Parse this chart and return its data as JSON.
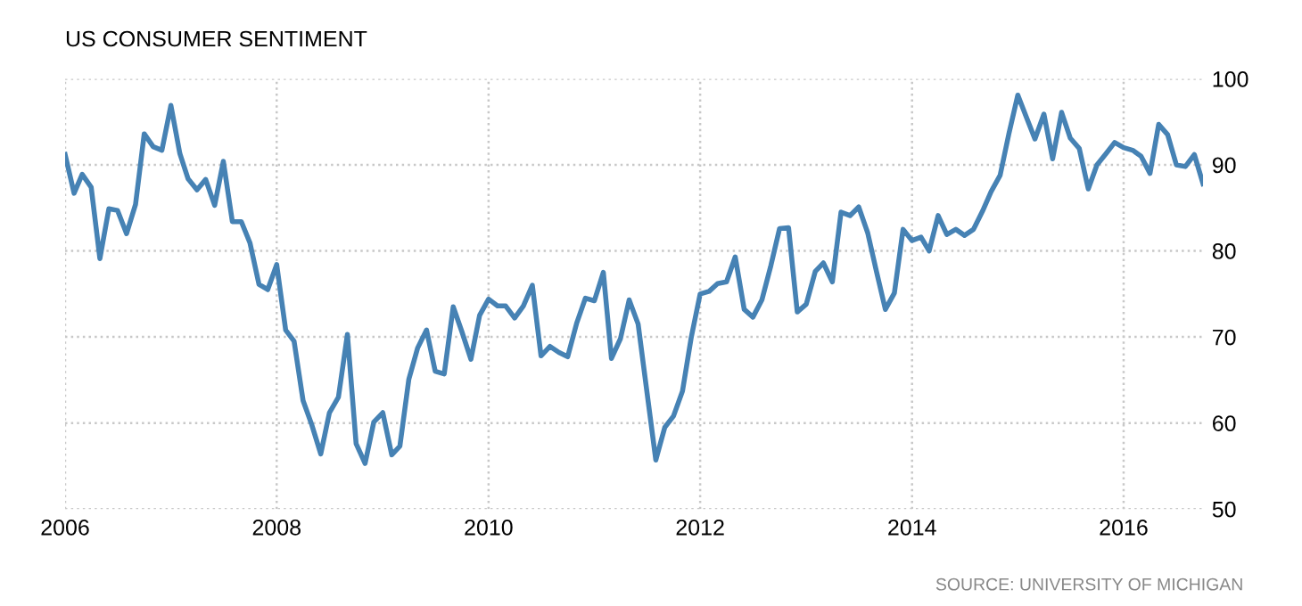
{
  "chart_data": {
    "type": "line",
    "title": "US CONSUMER SENTIMENT",
    "annotations": [
      "SOURCE: UNIVERSITY OF MICHIGAN"
    ],
    "x": [
      "2006-01",
      "2006-02",
      "2006-03",
      "2006-04",
      "2006-05",
      "2006-06",
      "2006-07",
      "2006-08",
      "2006-09",
      "2006-10",
      "2006-11",
      "2006-12",
      "2007-01",
      "2007-02",
      "2007-03",
      "2007-04",
      "2007-05",
      "2007-06",
      "2007-07",
      "2007-08",
      "2007-09",
      "2007-10",
      "2007-11",
      "2007-12",
      "2008-01",
      "2008-02",
      "2008-03",
      "2008-04",
      "2008-05",
      "2008-06",
      "2008-07",
      "2008-08",
      "2008-09",
      "2008-10",
      "2008-11",
      "2008-12",
      "2009-01",
      "2009-02",
      "2009-03",
      "2009-04",
      "2009-05",
      "2009-06",
      "2009-07",
      "2009-08",
      "2009-09",
      "2009-10",
      "2009-11",
      "2009-12",
      "2010-01",
      "2010-02",
      "2010-03",
      "2010-04",
      "2010-05",
      "2010-06",
      "2010-07",
      "2010-08",
      "2010-09",
      "2010-10",
      "2010-11",
      "2010-12",
      "2011-01",
      "2011-02",
      "2011-03",
      "2011-04",
      "2011-05",
      "2011-06",
      "2011-07",
      "2011-08",
      "2011-09",
      "2011-10",
      "2011-11",
      "2011-12",
      "2012-01",
      "2012-02",
      "2012-03",
      "2012-04",
      "2012-05",
      "2012-06",
      "2012-07",
      "2012-08",
      "2012-09",
      "2012-10",
      "2012-11",
      "2012-12",
      "2013-01",
      "2013-02",
      "2013-03",
      "2013-04",
      "2013-05",
      "2013-06",
      "2013-07",
      "2013-08",
      "2013-09",
      "2013-10",
      "2013-11",
      "2013-12",
      "2014-01",
      "2014-02",
      "2014-03",
      "2014-04",
      "2014-05",
      "2014-06",
      "2014-07",
      "2014-08",
      "2014-09",
      "2014-10",
      "2014-11",
      "2014-12",
      "2015-01",
      "2015-02",
      "2015-03",
      "2015-04",
      "2015-05",
      "2015-06",
      "2015-07",
      "2015-08",
      "2015-09",
      "2015-10",
      "2015-11",
      "2015-12",
      "2016-01",
      "2016-02",
      "2016-03",
      "2016-04",
      "2016-05",
      "2016-06",
      "2016-07",
      "2016-08",
      "2016-09",
      "2016-10"
    ],
    "series": [
      {
        "color": "#4682b4",
        "values": [
          91.2,
          86.7,
          88.9,
          87.4,
          79.1,
          84.9,
          84.7,
          82.0,
          85.4,
          93.6,
          92.1,
          91.7,
          96.9,
          91.3,
          88.4,
          87.1,
          88.3,
          85.3,
          90.4,
          83.4,
          83.4,
          80.9,
          76.1,
          75.5,
          78.4,
          70.8,
          69.5,
          62.6,
          59.8,
          56.4,
          61.2,
          63.0,
          70.3,
          57.6,
          55.3,
          60.1,
          61.2,
          56.3,
          57.3,
          65.1,
          68.7,
          70.8,
          66.0,
          65.7,
          73.5,
          70.6,
          67.4,
          72.5,
          74.4,
          73.6,
          73.6,
          72.2,
          73.6,
          76.0,
          67.8,
          68.9,
          68.2,
          67.7,
          71.6,
          74.5,
          74.2,
          77.5,
          67.5,
          69.8,
          74.3,
          71.5,
          63.7,
          55.7,
          59.5,
          60.8,
          63.7,
          69.9,
          75.0,
          75.3,
          76.2,
          76.4,
          79.3,
          73.2,
          72.3,
          74.3,
          78.3,
          82.6,
          82.7,
          72.9,
          73.8,
          77.6,
          78.6,
          76.4,
          84.5,
          84.1,
          85.1,
          82.1,
          77.5,
          73.2,
          75.1,
          82.5,
          81.2,
          81.6,
          80.0,
          84.1,
          81.9,
          82.5,
          81.8,
          82.5,
          84.6,
          86.9,
          88.8,
          93.6,
          98.1,
          95.4,
          93.0,
          95.9,
          90.7,
          96.1,
          93.1,
          91.9,
          87.2,
          90.0,
          91.3,
          92.6,
          92.0,
          91.7,
          91.0,
          89.0,
          94.7,
          93.5,
          90.0,
          89.8,
          91.2,
          87.8
        ]
      }
    ],
    "xlim": [
      "2006-01",
      "2016-10"
    ],
    "xticks": [
      {
        "value": "2006-01",
        "label": "2006"
      },
      {
        "value": "2008-01",
        "label": "2008"
      },
      {
        "value": "2010-01",
        "label": "2010"
      },
      {
        "value": "2012-01",
        "label": "2012"
      },
      {
        "value": "2014-01",
        "label": "2014"
      },
      {
        "value": "2016-01",
        "label": "2016"
      }
    ],
    "ylim": [
      50,
      100
    ],
    "yticks": [
      50,
      60,
      70,
      80,
      90,
      100
    ],
    "grid": true,
    "legend": false,
    "marker": "none",
    "line_style": "solid"
  }
}
